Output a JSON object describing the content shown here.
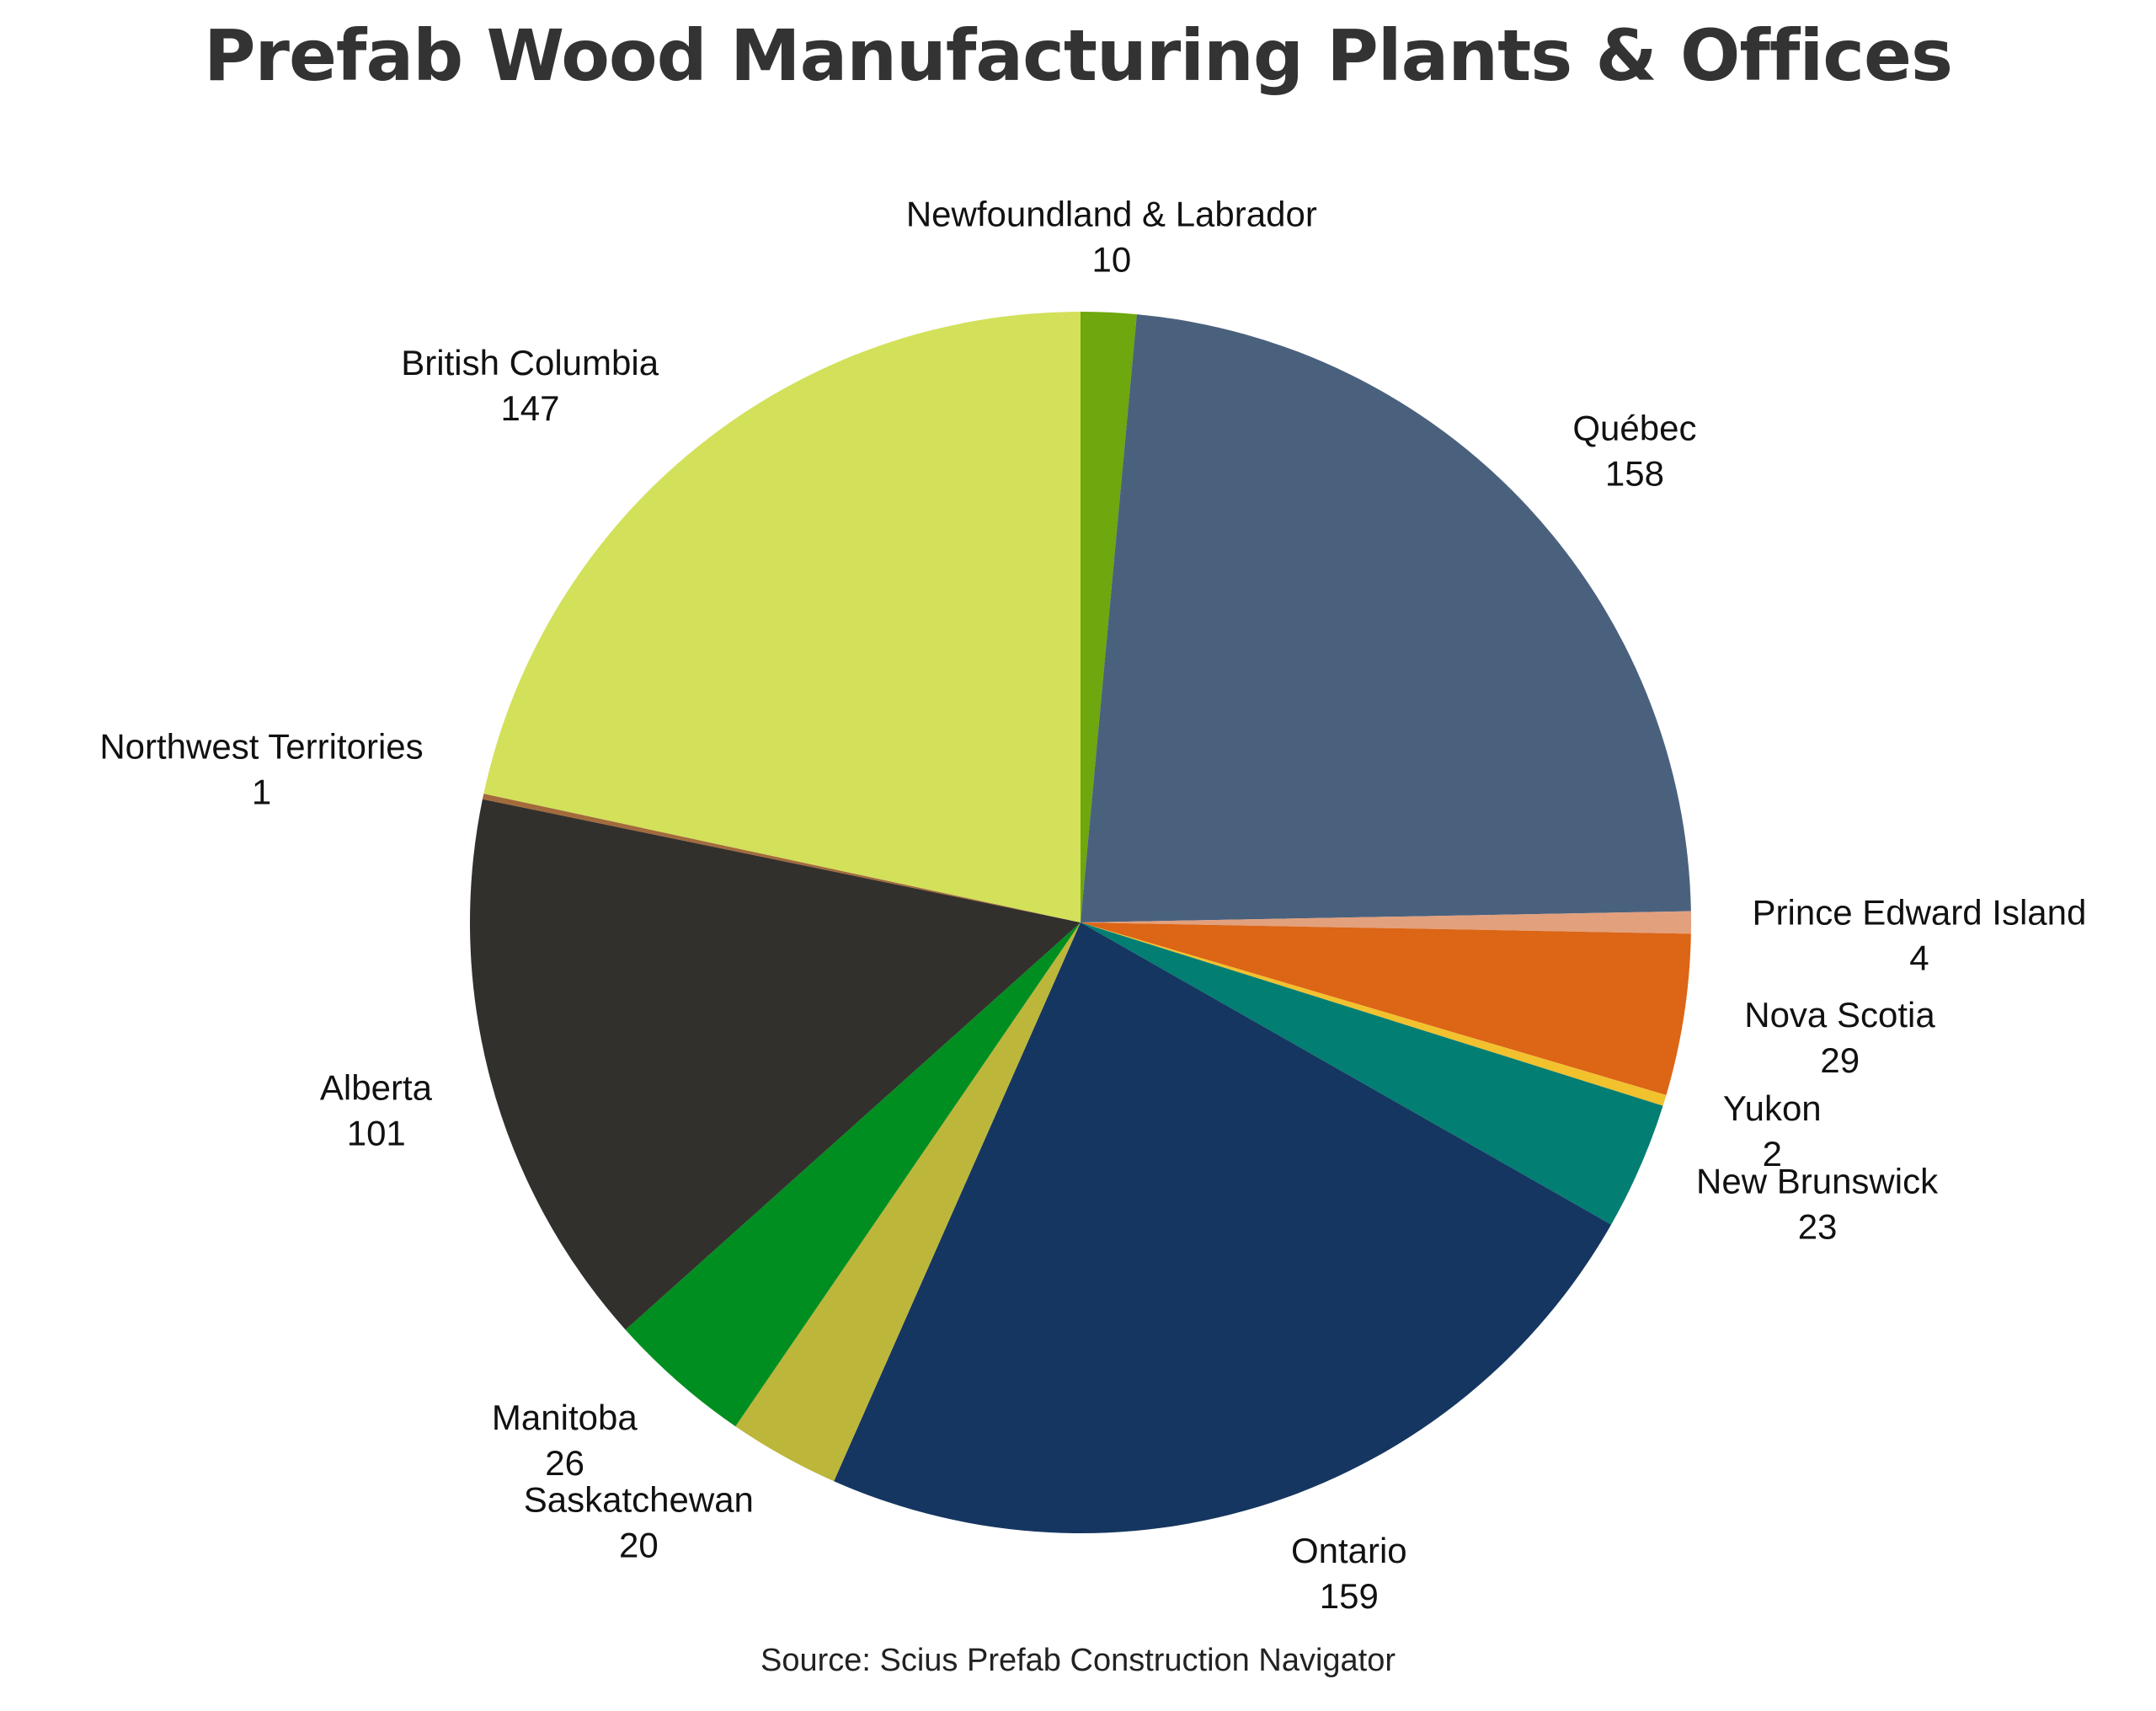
{
  "chart_data": {
    "type": "pie",
    "title": "Prefab Wood Manufacturing Plants & Offices",
    "source": "Source: Scius Prefab Construction Navigator",
    "start_angle_deg": 90,
    "direction": "clockwise",
    "slices": [
      {
        "label": "Newfoundland & Labrador",
        "value": 10,
        "color": "#6ea70e"
      },
      {
        "label": "Québec",
        "value": 158,
        "color": "#4a617e"
      },
      {
        "label": "Prince Edward Island",
        "value": 4,
        "color": "#e3a07d"
      },
      {
        "label": "Nova Scotia",
        "value": 29,
        "color": "#dc6516"
      },
      {
        "label": "Yukon",
        "value": 2,
        "color": "#f2c12e"
      },
      {
        "label": "New Brunswick",
        "value": 23,
        "color": "#037e73"
      },
      {
        "label": "Ontario",
        "value": 159,
        "color": "#153660"
      },
      {
        "label": "Saskatchewan",
        "value": 20,
        "color": "#bcb63b"
      },
      {
        "label": "Manitoba",
        "value": 26,
        "color": "#008e20"
      },
      {
        "label": "Alberta",
        "value": 101,
        "color": "#32302d"
      },
      {
        "label": "Northwest Territories",
        "value": 1,
        "color": "#a36a3c"
      },
      {
        "label": "British Columbia",
        "value": 147,
        "color": "#d3e05a"
      }
    ]
  }
}
